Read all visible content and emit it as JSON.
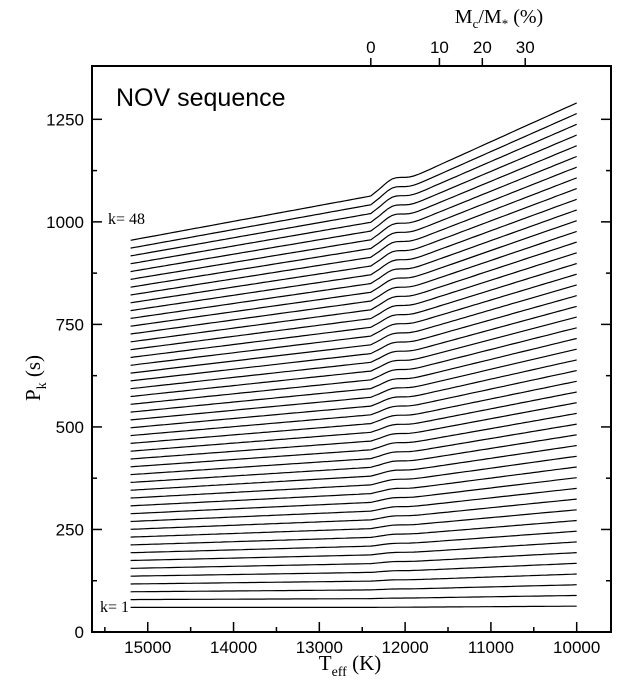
{
  "chart_data": {
    "type": "line",
    "title": "NOV sequence",
    "xlabel": {
      "main": "T",
      "sub": "eff",
      "unit": " (K)"
    },
    "ylabel": {
      "main": "P",
      "sub": "k",
      "unit": " (s)"
    },
    "top_axis_label": {
      "a": "M",
      "a_sub": "c",
      "b": "/M",
      "b_sub": "*",
      "unit": " (%)"
    },
    "x_reversed": true,
    "xlim": [
      15650,
      9600
    ],
    "ylim": [
      0,
      1380
    ],
    "x_ticks": [
      15000,
      14000,
      13000,
      12000,
      11000,
      10000
    ],
    "x_tick_labels": [
      "15000",
      "14000",
      "13000",
      "12000",
      "11000",
      "10000"
    ],
    "y_ticks": [
      0,
      250,
      500,
      750,
      1000,
      1250
    ],
    "y_tick_labels": [
      "0",
      "250",
      "500",
      "750",
      "1000",
      "1250"
    ],
    "top_axis": {
      "ticks": [
        {
          "label": "0",
          "teff": 12400
        },
        {
          "label": "10",
          "teff": 11600
        },
        {
          "label": "20",
          "teff": 11100
        },
        {
          "label": "30",
          "teff": 10600
        }
      ],
      "line_from": 12400,
      "line_to": 10300
    },
    "x_start": 15200,
    "x_end": 10000,
    "crystallization_onset": 12400,
    "first_mode": {
      "k": 1,
      "p_start": 60,
      "p_end": 63
    },
    "last_mode": {
      "k": 48,
      "p_start": 955,
      "p_at_onset": 1063,
      "p_end": 1290
    },
    "n_modes": 48,
    "labels": {
      "first": "k= 1",
      "last": "k= 48"
    },
    "grid": false,
    "legend": "none"
  }
}
